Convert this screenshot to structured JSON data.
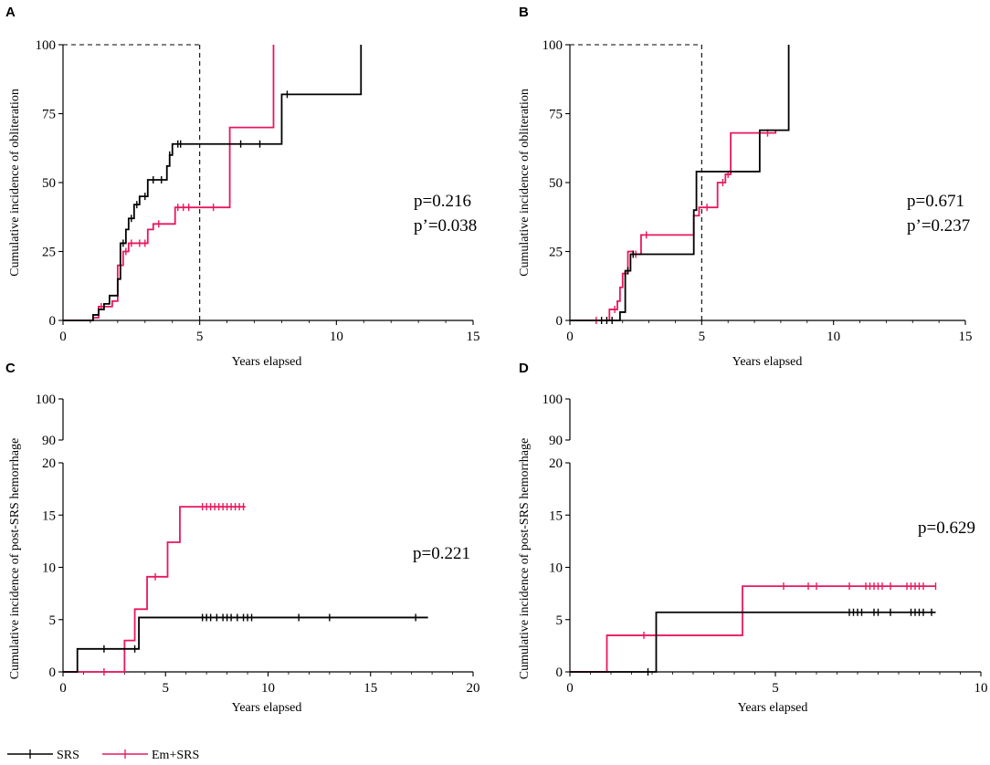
{
  "colors": {
    "srs": "#000000",
    "em_srs": "#e8185c"
  },
  "legend": [
    {
      "label": "SRS",
      "color": "#000000"
    },
    {
      "label": "Em+SRS",
      "color": "#e8185c"
    }
  ],
  "chart_data": [
    {
      "panel_label": "A",
      "type": "line",
      "xlabel": "Years elapsed",
      "ylabel": "Cumulative incidence of obliteration",
      "xlim": [
        0,
        15
      ],
      "ylim": [
        0,
        100
      ],
      "xticks": [
        "0",
        "5",
        "10",
        "15"
      ],
      "yticks": [
        "0",
        "25",
        "50",
        "75",
        "100"
      ],
      "reference_lines": [
        5
      ],
      "pvalues": [
        "p=0.216",
        "p’=0.038"
      ],
      "series": [
        {
          "name": "SRS",
          "steps": [
            [
              0,
              0
            ],
            [
              1.1,
              2
            ],
            [
              1.3,
              4
            ],
            [
              1.5,
              6
            ],
            [
              1.7,
              9
            ],
            [
              2.0,
              15
            ],
            [
              2.1,
              28
            ],
            [
              2.3,
              33
            ],
            [
              2.4,
              37
            ],
            [
              2.6,
              42
            ],
            [
              2.8,
              45
            ],
            [
              3.1,
              51
            ],
            [
              3.8,
              56
            ],
            [
              3.9,
              60
            ],
            [
              4.0,
              64
            ],
            [
              8.0,
              82
            ],
            [
              10.9,
              100
            ]
          ],
          "censor": [
            2.2,
            2.5,
            2.7,
            3.0,
            3.3,
            3.6,
            3.9,
            4.2,
            4.3,
            6.5,
            7.2,
            8.2
          ]
        },
        {
          "name": "Em+SRS",
          "steps": [
            [
              0,
              0
            ],
            [
              1.1,
              1
            ],
            [
              1.3,
              5
            ],
            [
              1.8,
              7
            ],
            [
              2.0,
              20
            ],
            [
              2.2,
              25
            ],
            [
              2.4,
              28
            ],
            [
              3.1,
              33
            ],
            [
              3.3,
              35
            ],
            [
              4.1,
              41
            ],
            [
              6.1,
              70
            ],
            [
              7.7,
              100
            ]
          ],
          "censor": [
            1.4,
            2.3,
            2.5,
            2.8,
            3.0,
            3.5,
            4.2,
            4.4,
            4.6,
            5.5
          ]
        }
      ]
    },
    {
      "panel_label": "B",
      "type": "line",
      "xlabel": "Years elapsed",
      "ylabel": "Cumulative incidence of obliteration",
      "xlim": [
        0,
        15
      ],
      "ylim": [
        0,
        100
      ],
      "xticks": [
        "0",
        "5",
        "10",
        "15"
      ],
      "yticks": [
        "0",
        "25",
        "50",
        "75",
        "100"
      ],
      "reference_lines": [
        5
      ],
      "pvalues": [
        "p=0.671",
        "p’=0.237"
      ],
      "series": [
        {
          "name": "SRS",
          "steps": [
            [
              0,
              0
            ],
            [
              1.9,
              3
            ],
            [
              2.1,
              18
            ],
            [
              2.3,
              24
            ],
            [
              4.7,
              40
            ],
            [
              4.8,
              54
            ],
            [
              7.2,
              69
            ],
            [
              8.3,
              100
            ]
          ],
          "censor": [
            1.2,
            1.4,
            1.6,
            2.2,
            2.4
          ]
        },
        {
          "name": "Em+SRS",
          "steps": [
            [
              0,
              0
            ],
            [
              1.5,
              4
            ],
            [
              1.8,
              7
            ],
            [
              1.9,
              12
            ],
            [
              2.0,
              17
            ],
            [
              2.2,
              25
            ],
            [
              2.4,
              24
            ],
            [
              2.7,
              31
            ],
            [
              4.7,
              38
            ],
            [
              4.9,
              41
            ],
            [
              5.6,
              50
            ],
            [
              5.9,
              53
            ],
            [
              6.1,
              68
            ],
            [
              7.8,
              69
            ]
          ],
          "censor": [
            1.0,
            1.7,
            2.1,
            2.5,
            2.9,
            5.2,
            5.8,
            6.0,
            7.5
          ]
        }
      ]
    },
    {
      "panel_label": "C",
      "type": "line",
      "xlabel": "Years elapsed",
      "ylabel": "Cumulative incidence of post-SRS hemorrhage",
      "xlim": [
        0,
        20
      ],
      "ylim": [
        0,
        20
      ],
      "axis_break": [
        20,
        90
      ],
      "upper_ylim": [
        90,
        100
      ],
      "xticks": [
        "0",
        "5",
        "10",
        "15",
        "20"
      ],
      "yticks": [
        "0",
        "5",
        "10",
        "15",
        "20"
      ],
      "upper_yticks": [
        "90",
        "100"
      ],
      "pvalues": [
        "p=0.221"
      ],
      "series": [
        {
          "name": "SRS",
          "steps": [
            [
              0,
              0
            ],
            [
              0.7,
              2.2
            ],
            [
              3.7,
              5.2
            ],
            [
              17.8,
              5.2
            ]
          ],
          "censor": [
            2.0,
            3.5,
            6.8,
            7.0,
            7.2,
            7.5,
            7.8,
            8.0,
            8.2,
            8.5,
            8.8,
            9.0,
            9.2,
            11.5,
            13.0,
            17.2
          ]
        },
        {
          "name": "Em+SRS",
          "steps": [
            [
              0,
              0
            ],
            [
              3.0,
              3.0
            ],
            [
              3.5,
              6.0
            ],
            [
              4.1,
              9.1
            ],
            [
              5.1,
              12.4
            ],
            [
              5.7,
              15.8
            ],
            [
              8.9,
              15.8
            ]
          ],
          "censor": [
            2.0,
            4.5,
            6.8,
            7.0,
            7.2,
            7.4,
            7.6,
            7.8,
            8.0,
            8.2,
            8.4,
            8.6,
            8.8
          ]
        }
      ]
    },
    {
      "panel_label": "D",
      "type": "line",
      "xlabel": "Years elapsed",
      "ylabel": "Cumulative incidence of post-SRS hemorrhage",
      "xlim": [
        0,
        10
      ],
      "ylim": [
        0,
        20
      ],
      "axis_break": [
        20,
        90
      ],
      "upper_ylim": [
        90,
        100
      ],
      "xticks": [
        "0",
        "5",
        "10"
      ],
      "yticks": [
        "0",
        "5",
        "10",
        "15",
        "20"
      ],
      "upper_yticks": [
        "90",
        "100"
      ],
      "pvalues": [
        "p=0.629"
      ],
      "series": [
        {
          "name": "SRS",
          "steps": [
            [
              0,
              0
            ],
            [
              2.1,
              5.7
            ],
            [
              8.9,
              5.7
            ]
          ],
          "censor": [
            1.9,
            6.8,
            6.9,
            7.0,
            7.1,
            7.4,
            7.5,
            7.8,
            8.3,
            8.4,
            8.5,
            8.6,
            8.8
          ]
        },
        {
          "name": "Em+SRS",
          "steps": [
            [
              0,
              0
            ],
            [
              0.9,
              3.5
            ],
            [
              4.2,
              8.2
            ],
            [
              8.9,
              8.2
            ]
          ],
          "censor": [
            1.8,
            5.2,
            5.8,
            6.0,
            6.8,
            7.2,
            7.3,
            7.4,
            7.5,
            7.6,
            7.8,
            8.2,
            8.3,
            8.4,
            8.5,
            8.6,
            8.9
          ]
        }
      ]
    }
  ]
}
